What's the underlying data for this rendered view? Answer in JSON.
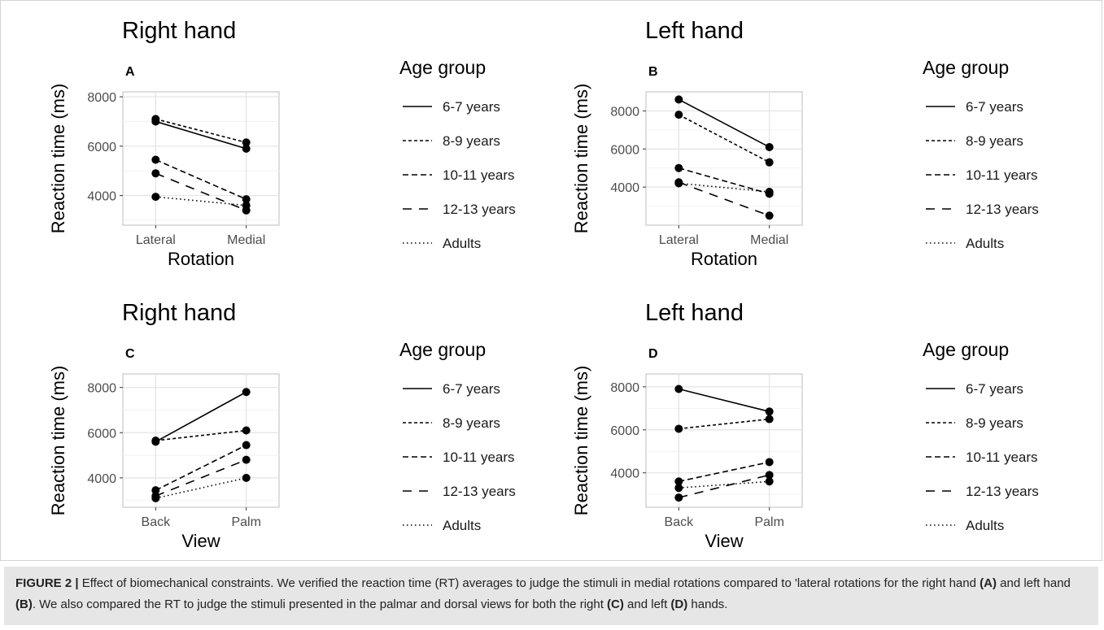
{
  "chart_data": [
    {
      "type": "line",
      "panel_letter": "A",
      "title": "Right hand",
      "xlabel": "Rotation",
      "ylabel": "Reaction time (ms)",
      "categories": [
        "Lateral",
        "Medial"
      ],
      "yticks": [
        4000,
        6000,
        8000
      ],
      "ylim": [
        2800,
        8200
      ],
      "legend_title": "Age group",
      "series": [
        {
          "name": "6-7 years",
          "values": [
            7000,
            5900
          ]
        },
        {
          "name": "8-9 years",
          "values": [
            7100,
            6150
          ]
        },
        {
          "name": "10-11 years",
          "values": [
            5450,
            3850
          ]
        },
        {
          "name": "12-13 years",
          "values": [
            4900,
            3400
          ]
        },
        {
          "name": "Adults",
          "values": [
            3950,
            3600
          ]
        }
      ]
    },
    {
      "type": "line",
      "panel_letter": "B",
      "title": "Left hand",
      "xlabel": "Rotation",
      "ylabel": "Reaction time (ms)",
      "categories": [
        "Lateral",
        "Medial"
      ],
      "yticks": [
        4000,
        6000,
        8000
      ],
      "ylim": [
        2000,
        9000
      ],
      "legend_title": "Age group",
      "series": [
        {
          "name": "6-7 years",
          "values": [
            8600,
            6100
          ]
        },
        {
          "name": "8-9 years",
          "values": [
            7800,
            5300
          ]
        },
        {
          "name": "10-11 years",
          "values": [
            5000,
            3650
          ]
        },
        {
          "name": "12-13 years",
          "values": [
            4250,
            2500
          ]
        },
        {
          "name": "Adults",
          "values": [
            4200,
            3750
          ]
        }
      ]
    },
    {
      "type": "line",
      "panel_letter": "C",
      "title": "Right hand",
      "xlabel": "View",
      "ylabel": "Reaction time (ms)",
      "categories": [
        "Back",
        "Palm"
      ],
      "yticks": [
        4000,
        6000,
        8000
      ],
      "ylim": [
        2700,
        8600
      ],
      "legend_title": "Age group",
      "series": [
        {
          "name": "6-7 years",
          "values": [
            5600,
            7800
          ]
        },
        {
          "name": "8-9 years",
          "values": [
            5650,
            6100
          ]
        },
        {
          "name": "10-11 years",
          "values": [
            3450,
            5450
          ]
        },
        {
          "name": "12-13 years",
          "values": [
            3200,
            4800
          ]
        },
        {
          "name": "Adults",
          "values": [
            3100,
            4000
          ]
        }
      ]
    },
    {
      "type": "line",
      "panel_letter": "D",
      "title": "Left hand",
      "xlabel": "View",
      "ylabel": "Reaction time (ms)",
      "categories": [
        "Back",
        "Palm"
      ],
      "yticks": [
        4000,
        6000,
        8000
      ],
      "ylim": [
        2400,
        8600
      ],
      "legend_title": "Age group",
      "series": [
        {
          "name": "6-7 years",
          "values": [
            7900,
            6850
          ]
        },
        {
          "name": "8-9 years",
          "values": [
            6050,
            6500
          ]
        },
        {
          "name": "10-11 years",
          "values": [
            3600,
            4500
          ]
        },
        {
          "name": "12-13 years",
          "values": [
            2850,
            3900
          ]
        },
        {
          "name": "Adults",
          "values": [
            3300,
            3600
          ]
        }
      ]
    }
  ],
  "line_styles": [
    "solid",
    "short-dash",
    "dash",
    "long-dash",
    "dotted"
  ],
  "colors": {
    "line": "#000000",
    "grid": "#ebebeb",
    "axis_text": "#4d4d4d",
    "caption_bg": "#e6e6e6"
  },
  "caption": {
    "label": "FIGURE 2 |",
    "text_1": " Effect of biomechanical constraints. We verified the reaction time (RT) averages to judge the stimuli in medial rotations compared to 'lateral rotations for the right hand ",
    "ref_a": "(A)",
    "text_2": " and left hand ",
    "ref_b": "(B)",
    "text_3": ". We also compared the RT to judge the stimuli presented in the palmar and dorsal views for both the right ",
    "ref_c": "(C)",
    "text_4": " and left ",
    "ref_d": "(D)",
    "text_5": " hands."
  }
}
